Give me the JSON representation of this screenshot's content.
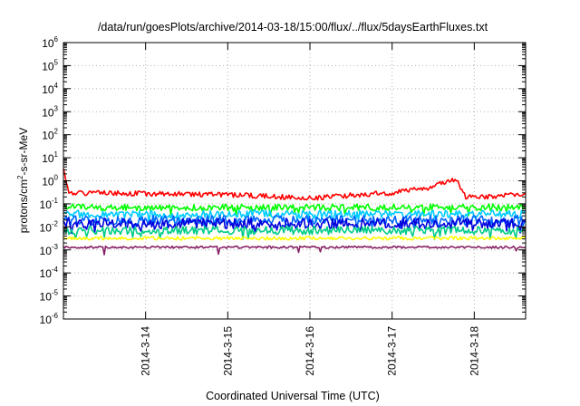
{
  "chart_data": {
    "type": "line",
    "title": "/data/run/goesPlots/archive/2014-03-18/15:00/flux/../flux/5daysEarthFluxes.txt",
    "xlabel": "Coordinated Universal Time (UTC)",
    "ylabel": {
      "prefix": "protons/cm",
      "sup": "2",
      "suffix": "-s-sr-MeV"
    },
    "yscale": "log",
    "ylim_exp": [
      -6,
      6
    ],
    "y_ticks_exp": [
      -6,
      -5,
      -4,
      -3,
      -2,
      -1,
      0,
      1,
      2,
      3,
      4,
      5,
      6
    ],
    "xlim_days": [
      "2014-03-13 00:00",
      "2014-03-18 15:00"
    ],
    "x_ticks": [
      "2014-3-14",
      "2014-3-15",
      "2014-3-16",
      "2014-3-17",
      "2014-3-18"
    ],
    "grid": true,
    "series": [
      {
        "color": "#ff0000",
        "base": 0.22,
        "noise": 0.22,
        "dips": 0.0,
        "seed": 1,
        "anchors": [
          [
            0.0,
            3.5
          ],
          [
            0.04,
            0.5
          ],
          [
            0.08,
            0.3
          ],
          [
            2.0,
            0.25
          ],
          [
            3.0,
            0.18
          ],
          [
            4.0,
            0.3
          ],
          [
            4.5,
            0.55
          ],
          [
            4.7,
            1.1
          ],
          [
            4.8,
            0.8
          ],
          [
            4.9,
            0.2
          ],
          [
            5.2,
            0.2
          ],
          [
            5.62,
            0.3
          ]
        ]
      },
      {
        "color": "#00ff00",
        "base": 0.07,
        "noise": 0.3,
        "dips": 0.05,
        "seed": 2
      },
      {
        "color": "#00ccff",
        "base": 0.035,
        "noise": 0.35,
        "dips": 0.06,
        "seed": 3
      },
      {
        "color": "#0066ff",
        "base": 0.02,
        "noise": 0.4,
        "dips": 0.08,
        "seed": 4
      },
      {
        "color": "#0000dd",
        "base": 0.014,
        "noise": 0.45,
        "dips": 0.09,
        "seed": 5
      },
      {
        "color": "#00cc88",
        "base": 0.007,
        "noise": 0.35,
        "dips": 0.05,
        "seed": 6
      },
      {
        "color": "#ffff00",
        "base": 0.0032,
        "noise": 0.15,
        "dips": 0.0,
        "seed": 7
      },
      {
        "color": "#882266",
        "base": 0.0013,
        "noise": 0.1,
        "dips": 0.025,
        "seed": 8
      }
    ]
  }
}
